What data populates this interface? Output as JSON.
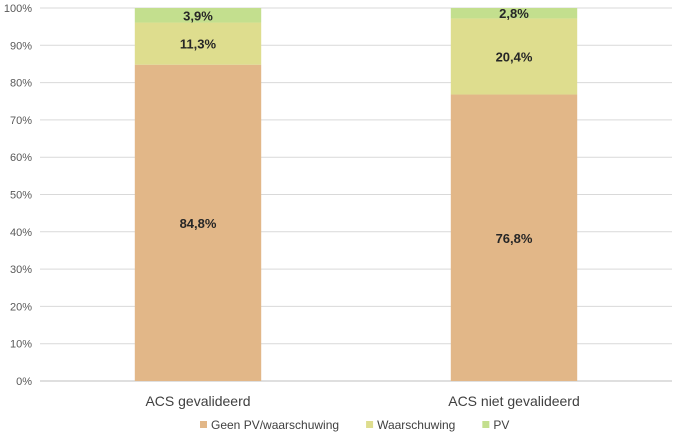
{
  "chart_data": {
    "type": "bar",
    "stacked": true,
    "percent": true,
    "categories": [
      "ACS gevalideerd",
      "ACS niet gevalideerd"
    ],
    "series": [
      {
        "name": "Geen PV/waarschuwing",
        "values": [
          84.8,
          76.8
        ],
        "labels": [
          "84,8%",
          "76,8%"
        ],
        "color": "#e2b788"
      },
      {
        "name": "Waarschuwing",
        "values": [
          11.3,
          20.4
        ],
        "labels": [
          "11,3%",
          "20,4%"
        ],
        "color": "#dedd8e"
      },
      {
        "name": "PV",
        "values": [
          3.9,
          2.8
        ],
        "labels": [
          "3,9%",
          "2,8%"
        ],
        "color": "#c3df8e"
      }
    ],
    "y_ticks": [
      "0%",
      "10%",
      "20%",
      "30%",
      "40%",
      "50%",
      "60%",
      "70%",
      "80%",
      "90%",
      "100%"
    ],
    "ylim": [
      0,
      100
    ],
    "grid": true,
    "legend_position": "bottom"
  }
}
